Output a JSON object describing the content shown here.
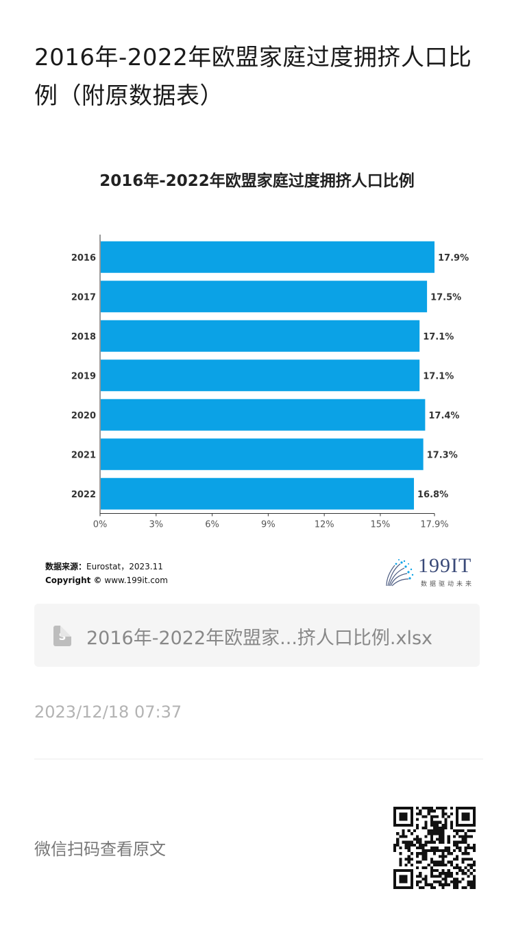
{
  "article": {
    "title": "2016年-2022年欧盟家庭过度拥挤人口比例（附原数据表）"
  },
  "chart_data": {
    "type": "bar",
    "orientation": "horizontal",
    "title": "2016年-2022年欧盟家庭过度拥挤人口比例",
    "categories": [
      "2016",
      "2017",
      "2018",
      "2019",
      "2020",
      "2021",
      "2022"
    ],
    "values": [
      17.9,
      17.5,
      17.1,
      17.1,
      17.4,
      17.3,
      16.8
    ],
    "value_labels": [
      "17.9%",
      "17.5%",
      "17.1%",
      "17.1%",
      "17.4%",
      "17.3%",
      "16.8%"
    ],
    "xlim": [
      0,
      17.9
    ],
    "x_ticks": [
      0,
      3,
      6,
      9,
      12,
      15,
      17.9
    ],
    "x_tick_labels": [
      "0%",
      "3%",
      "6%",
      "9%",
      "12%",
      "15%",
      "17.9%"
    ],
    "xlabel": "",
    "ylabel": "",
    "grid": false,
    "bar_color": "#0ba2e6"
  },
  "source": {
    "label": "数据来源：",
    "value": "Eurostat，2023.11",
    "copyright_label": "Copyright ©",
    "copyright_value": "www.199it.com"
  },
  "brand": {
    "name": "199IT",
    "slogan": "数据驱动未来",
    "icon": "dandelion-logo-icon"
  },
  "attachment": {
    "icon": "spreadsheet-file-icon",
    "icon_letter": "S",
    "filename": "2016年-2022年欧盟家...挤人口比例.xlsx"
  },
  "timestamp": "2023/12/18 07:37",
  "qr": {
    "prompt": "微信扫码查看原文",
    "icon": "qr-code-icon"
  }
}
